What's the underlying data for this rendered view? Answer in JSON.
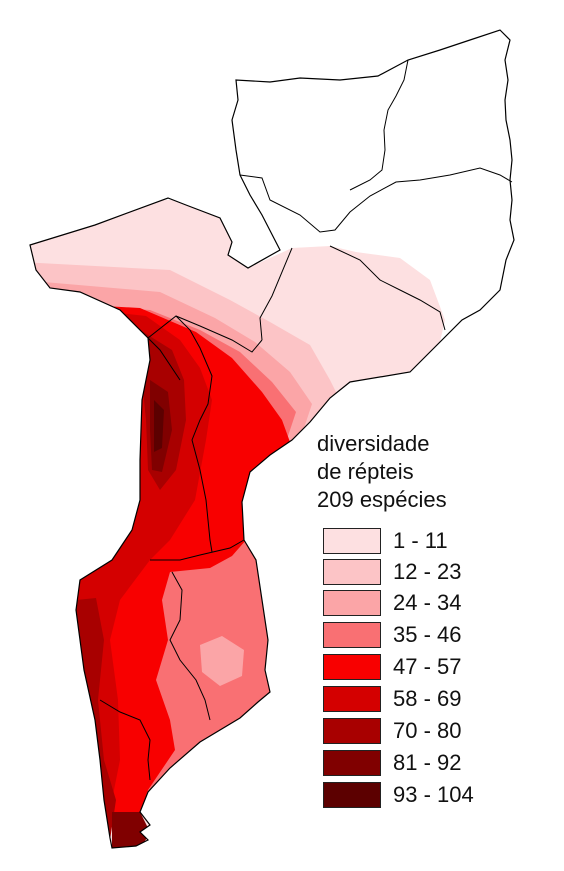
{
  "map": {
    "region": "Moçambique"
  },
  "legend": {
    "title_line1": "diversidade",
    "title_line2": "de répteis",
    "title_line3": "209 espécies",
    "classes": [
      {
        "label": "1 - 11",
        "color": "#fde0e1"
      },
      {
        "label": "12 - 23",
        "color": "#fcc4c6"
      },
      {
        "label": "24 - 34",
        "color": "#fba5a7"
      },
      {
        "label": "35 - 46",
        "color": "#f97073"
      },
      {
        "label": "47 - 57",
        "color": "#f80000"
      },
      {
        "label": "58 - 69",
        "color": "#d40000"
      },
      {
        "label": "70 - 80",
        "color": "#a80000"
      },
      {
        "label": "81 - 92",
        "color": "#800000"
      },
      {
        "label": "93 - 104",
        "color": "#5c0000"
      }
    ]
  }
}
